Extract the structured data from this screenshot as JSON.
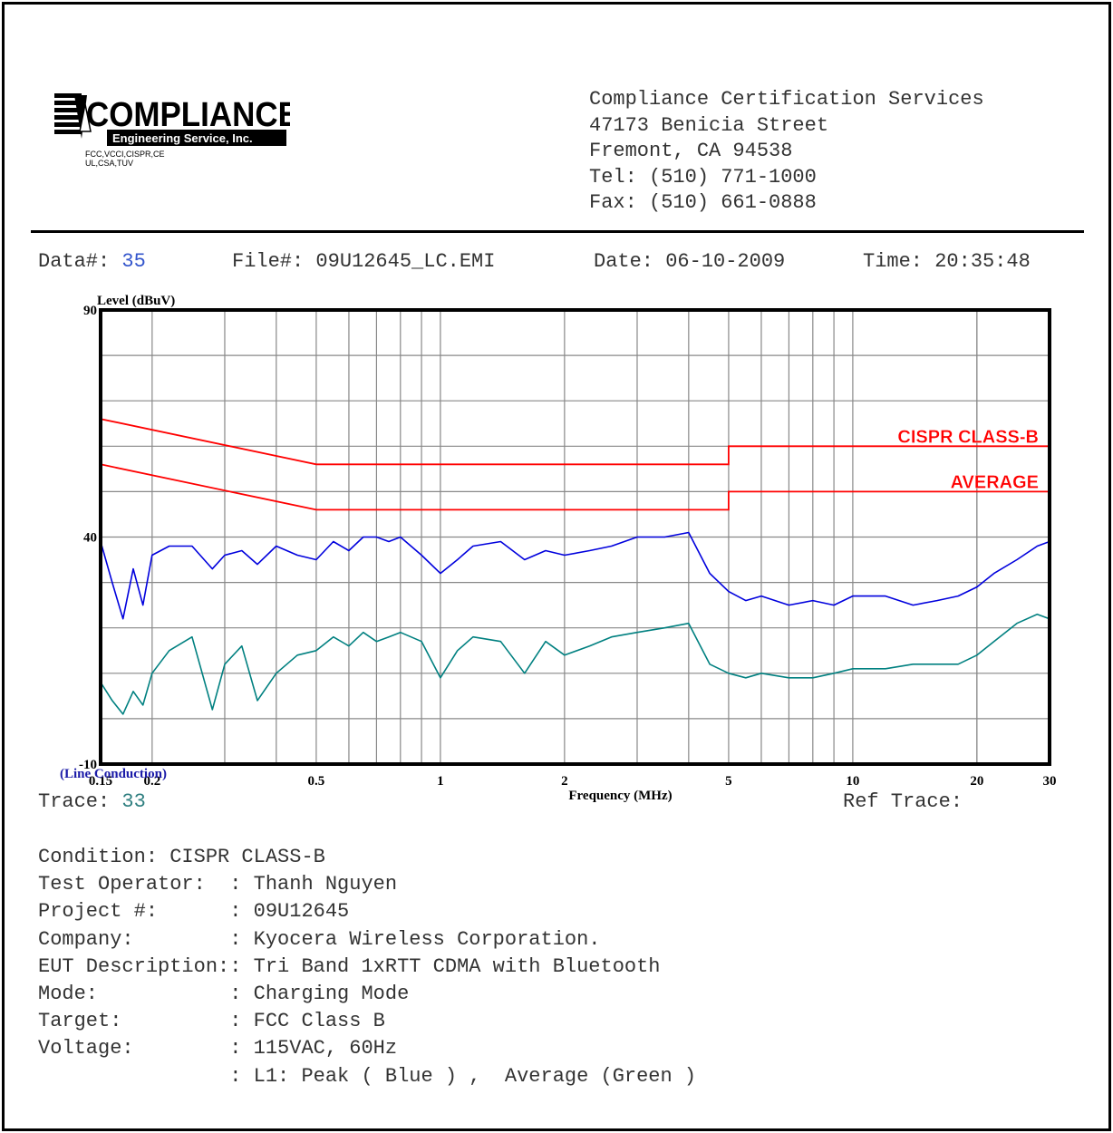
{
  "header": {
    "logo_text": "COMPLIANCE",
    "logo_sub": "Engineering Service, Inc.",
    "logo_small1": "FCC,VCCI,CISPR,CE",
    "logo_small2": "UL,CSA,TUV",
    "address": [
      "Compliance Certification Services",
      "47173 Benicia Street",
      "Fremont, CA 94538",
      "Tel: (510) 771-1000",
      "Fax: (510) 661-0888"
    ]
  },
  "meta": {
    "data_label": "Data#:",
    "data_value": "35",
    "file_label": "File#:",
    "file_value": "09U12645_LC.EMI",
    "date_label": "Date:",
    "date_value": "06-10-2009",
    "time_label": "Time:",
    "time_value": "20:35:48"
  },
  "chart_data": {
    "type": "line",
    "ylabel": "Level (dBuV)",
    "xlabel": "Frequency (MHz)",
    "x_scale": "log",
    "xlim": [
      0.15,
      30
    ],
    "ylim": [
      -10,
      90
    ],
    "y_ticks": [
      -10,
      40,
      90
    ],
    "x_ticks": [
      {
        "value": 0.15,
        "label": "0.15"
      },
      {
        "value": 0.2,
        "label": "0.2"
      },
      {
        "value": 0.5,
        "label": "0.5"
      },
      {
        "value": 1,
        "label": "1"
      },
      {
        "value": 2,
        "label": "2"
      },
      {
        "value": 5,
        "label": "5"
      },
      {
        "value": 10,
        "label": "10"
      },
      {
        "value": 20,
        "label": "20"
      },
      {
        "value": 30,
        "label": "30"
      }
    ],
    "grid": true,
    "subtitle": "(Line Conduction)",
    "limit_lines": [
      {
        "label": "CISPR CLASS-B",
        "color": "#ff0000",
        "points": [
          [
            0.15,
            66
          ],
          [
            0.5,
            56
          ],
          [
            5,
            56
          ],
          [
            5,
            60
          ],
          [
            30,
            60
          ]
        ]
      },
      {
        "label": "AVERAGE",
        "color": "#ff0000",
        "points": [
          [
            0.15,
            56
          ],
          [
            0.5,
            46
          ],
          [
            5,
            46
          ],
          [
            5,
            50
          ],
          [
            30,
            50
          ]
        ]
      }
    ],
    "series": [
      {
        "color": "#0000dd",
        "x": [
          0.15,
          0.16,
          0.17,
          0.18,
          0.19,
          0.2,
          0.22,
          0.25,
          0.28,
          0.3,
          0.33,
          0.36,
          0.4,
          0.45,
          0.5,
          0.55,
          0.6,
          0.65,
          0.7,
          0.75,
          0.8,
          0.9,
          1.0,
          1.1,
          1.2,
          1.4,
          1.6,
          1.8,
          2.0,
          2.3,
          2.6,
          3.0,
          3.5,
          4.0,
          4.5,
          5.0,
          5.5,
          6.0,
          7.0,
          8.0,
          9.0,
          10,
          12,
          14,
          16,
          18,
          20,
          22,
          25,
          28,
          30
        ],
        "y": [
          39,
          30,
          22,
          33,
          25,
          36,
          38,
          38,
          33,
          36,
          37,
          34,
          38,
          36,
          35,
          39,
          37,
          40,
          40,
          39,
          40,
          36,
          32,
          35,
          38,
          39,
          35,
          37,
          36,
          37,
          38,
          40,
          40,
          41,
          32,
          28,
          26,
          27,
          25,
          26,
          25,
          27,
          27,
          25,
          26,
          27,
          29,
          32,
          35,
          38,
          39
        ]
      },
      {
        "color": "#008080",
        "x": [
          0.15,
          0.16,
          0.17,
          0.18,
          0.19,
          0.2,
          0.22,
          0.25,
          0.28,
          0.3,
          0.33,
          0.36,
          0.4,
          0.45,
          0.5,
          0.55,
          0.6,
          0.65,
          0.7,
          0.75,
          0.8,
          0.9,
          1.0,
          1.1,
          1.2,
          1.4,
          1.6,
          1.8,
          2.0,
          2.3,
          2.6,
          3.0,
          3.5,
          4.0,
          4.5,
          5.0,
          5.5,
          6.0,
          7.0,
          8.0,
          9.0,
          10,
          12,
          14,
          16,
          18,
          20,
          22,
          25,
          28,
          30
        ],
        "y": [
          8,
          4,
          1,
          6,
          3,
          10,
          15,
          18,
          2,
          12,
          16,
          4,
          10,
          14,
          15,
          18,
          16,
          19,
          17,
          18,
          19,
          17,
          9,
          15,
          18,
          17,
          10,
          17,
          14,
          16,
          18,
          19,
          20,
          21,
          12,
          10,
          9,
          10,
          9,
          9,
          10,
          11,
          11,
          12,
          12,
          12,
          14,
          17,
          21,
          23,
          22
        ]
      }
    ]
  },
  "footer": {
    "line_conduction": "(Line Conduction)",
    "trace_label": "Trace:",
    "trace_value": "33",
    "ref_trace_label": "Ref Trace:",
    "conditions": [
      "Condition: CISPR CLASS-B",
      "Test Operator:  : Thanh Nguyen",
      "Project #:      : 09U12645",
      "Company:        : Kyocera Wireless Corporation.",
      "EUT Description:: Tri Band 1xRTT CDMA with Bluetooth",
      "Mode:           : Charging Mode",
      "Target:         : FCC Class B",
      "Voltage:        : 115VAC, 60Hz",
      "                : L1: Peak ( Blue ) ,  Average (Green )"
    ]
  }
}
